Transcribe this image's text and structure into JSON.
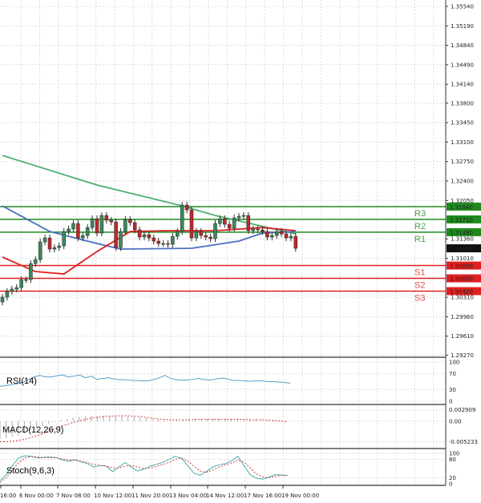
{
  "chart_data": [
    {
      "type": "candlestick",
      "panel": "price",
      "y_ticks": [
        "1.35540",
        "1.35190",
        "1.34840",
        "1.34490",
        "1.34140",
        "1.33800",
        "1.33450",
        "1.33100",
        "1.32750",
        "1.32400",
        "1.32050",
        "1.31360",
        "1.31010",
        "1.30310",
        "1.29960",
        "1.29610",
        "1.29270"
      ],
      "ylim": [
        1.2927,
        1.3554
      ],
      "x_tick_labels": [
        "16:00",
        "6 Nov 00:00",
        "7 Nov 08:00",
        "10 Nov 12:00",
        "11 Nov 20:00",
        "13 Nov 04:00",
        "14 Nov 12:00",
        "17 Nov 16:00",
        "19 Nov 00:00"
      ],
      "first_open": 1.30225,
      "closes": [
        1.30312,
        1.30412,
        1.30456,
        1.30484,
        1.30628,
        1.30628,
        1.30916,
        1.30988,
        1.31305,
        1.31377,
        1.31176,
        1.31204,
        1.31233,
        1.31492,
        1.31536,
        1.31636,
        1.31377,
        1.3142,
        1.31564,
        1.31723,
        1.31464,
        1.3178,
        1.31694,
        1.31665,
        1.31204,
        1.31492,
        1.31708,
        1.31651,
        1.31521,
        1.31392,
        1.31435,
        1.31377,
        1.3132,
        1.31276,
        1.31276,
        1.31262,
        1.31406,
        1.31492,
        1.31968,
        1.31881,
        1.31377,
        1.31492,
        1.3142,
        1.31392,
        1.31363,
        1.31636,
        1.31723,
        1.31622,
        1.3155,
        1.31737,
        1.31766,
        1.3178,
        1.31507,
        1.31536,
        1.31521,
        1.31492,
        1.31392,
        1.3142,
        1.31492,
        1.31449,
        1.31377,
        1.31406,
        1.3119
      ],
      "current_price": "1.31190",
      "moving_averages": [
        {
          "color": "#4caf72",
          "points": [
            [
              0,
              1.3286
            ],
            [
              20,
              1.32328
            ],
            [
              38,
              1.31953
            ],
            [
              45,
              1.3178
            ],
            [
              62,
              1.31449
            ]
          ]
        },
        {
          "color": "#4a6fc0",
          "points": [
            [
              0,
              1.31953
            ],
            [
              10,
              1.31492
            ],
            [
              20,
              1.31276
            ],
            [
              25,
              1.31176
            ],
            [
              40,
              1.3119
            ],
            [
              50,
              1.3132
            ],
            [
              55,
              1.31464
            ],
            [
              62,
              1.31492
            ]
          ]
        },
        {
          "color": "#e02020",
          "points": [
            [
              0,
              1.31032
            ],
            [
              7,
              1.30772
            ],
            [
              13,
              1.30729
            ],
            [
              20,
              1.31132
            ],
            [
              27,
              1.31492
            ],
            [
              35,
              1.31507
            ],
            [
              45,
              1.31507
            ],
            [
              55,
              1.31564
            ],
            [
              62,
              1.31507
            ]
          ]
        }
      ],
      "levels": [
        {
          "name": "R3",
          "value": 1.3194,
          "label": "1.31940",
          "color": "#1e8a1e"
        },
        {
          "name": "R2",
          "value": 1.3171,
          "label": "1.31710",
          "color": "#1e8a1e"
        },
        {
          "name": "R1",
          "value": 1.3148,
          "label": "1.31480",
          "color": "#1e8a1e"
        },
        {
          "name": "S1",
          "value": 1.3088,
          "label": "1.30880",
          "color": "#e02020"
        },
        {
          "name": "S2",
          "value": 1.3065,
          "label": "1.30650",
          "color": "#e02020"
        },
        {
          "name": "S3",
          "value": 1.3042,
          "label": "1.30420",
          "color": "#e02020"
        }
      ],
      "colors": {
        "up": "#3a8a5a",
        "down": "#c0282a"
      }
    },
    {
      "type": "line",
      "panel": "rsi",
      "title": "RSI(14)",
      "y_ticks": [
        "100",
        "70",
        "30",
        "0"
      ],
      "ylim": [
        0,
        100
      ],
      "values": [
        38,
        40,
        42,
        44,
        48,
        55,
        62,
        66,
        62,
        62,
        65,
        67,
        62,
        64,
        67,
        60,
        64,
        56,
        58,
        60,
        57,
        55,
        55,
        53,
        53,
        52,
        52,
        55,
        60,
        66,
        58,
        55,
        54,
        54,
        56,
        58,
        55,
        54,
        57,
        59,
        57,
        53,
        53,
        52,
        51,
        52,
        52,
        50,
        50,
        49,
        48,
        46
      ]
    },
    {
      "type": "bar+line",
      "panel": "macd",
      "title": "MACD(12,26,9)",
      "y_ticks": [
        "0.002909",
        "0.00",
        "-0.005233"
      ],
      "ylim": [
        -0.005233,
        0.002909
      ],
      "histogram": [
        -0.0045,
        -0.0043,
        -0.004,
        -0.0036,
        -0.003,
        -0.0024,
        -0.0018,
        -0.0012,
        -0.0006,
        -0.0001,
        0.0003,
        0.0006,
        0.0009,
        0.0011,
        0.0013,
        0.0014,
        0.0014,
        0.0015,
        0.0015,
        0.0014,
        0.0013,
        0.0012,
        0.0011,
        0.001,
        0.0008,
        0.0006,
        0.0005,
        0.0004,
        0.0004,
        0.0005,
        0.0005,
        0.0005,
        0.0005,
        0.0005,
        0.0006,
        0.0006,
        0.0006,
        0.0006,
        0.0005,
        0.0005,
        0.0005,
        0.0004,
        0.0004,
        0.0003,
        0.0003,
        0.0002,
        0.0002,
        0.0001
      ],
      "signal": [
        -0.0052,
        -0.0052,
        -0.0051,
        -0.0049,
        -0.0046,
        -0.0042,
        -0.0037,
        -0.0031,
        -0.0025,
        -0.0019,
        -0.0013,
        -0.0008,
        -0.0003,
        0.0001,
        0.0005,
        0.0008,
        0.001,
        0.0012,
        0.0013,
        0.0014,
        0.0014,
        0.0014,
        0.0013,
        0.0012,
        0.001,
        0.0008,
        0.0006,
        0.0005,
        0.0004,
        0.0004,
        0.0004,
        0.0004,
        0.0005,
        0.0005,
        0.0005,
        0.0005,
        0.0005,
        0.0005,
        0.0005,
        0.0005,
        0.0005,
        0.0004,
        0.0004,
        0.0004,
        0.0003,
        0.0002,
        0.0001,
        -0.0001
      ]
    },
    {
      "type": "line",
      "panel": "stoch",
      "title": "Stoch(9,6,3)",
      "y_ticks": [
        "100",
        "80",
        "20",
        "0"
      ],
      "ylim": [
        0,
        100
      ],
      "main": [
        10,
        30,
        60,
        85,
        92,
        90,
        85,
        87,
        88,
        86,
        78,
        74,
        80,
        72,
        66,
        55,
        60,
        58,
        40,
        55,
        70,
        55,
        42,
        48,
        58,
        64,
        70,
        80,
        90,
        84,
        60,
        35,
        28,
        40,
        55,
        62,
        66,
        75,
        90,
        60,
        30,
        18,
        15,
        22,
        30,
        29,
        27
      ],
      "signal": [
        5,
        20,
        45,
        70,
        85,
        90,
        88,
        86,
        86,
        86,
        82,
        78,
        77,
        74,
        70,
        64,
        60,
        58,
        52,
        52,
        58,
        60,
        55,
        50,
        52,
        57,
        63,
        70,
        80,
        85,
        75,
        58,
        42,
        38,
        45,
        55,
        62,
        68,
        78,
        72,
        52,
        32,
        22,
        20,
        24,
        28,
        28
      ]
    }
  ]
}
